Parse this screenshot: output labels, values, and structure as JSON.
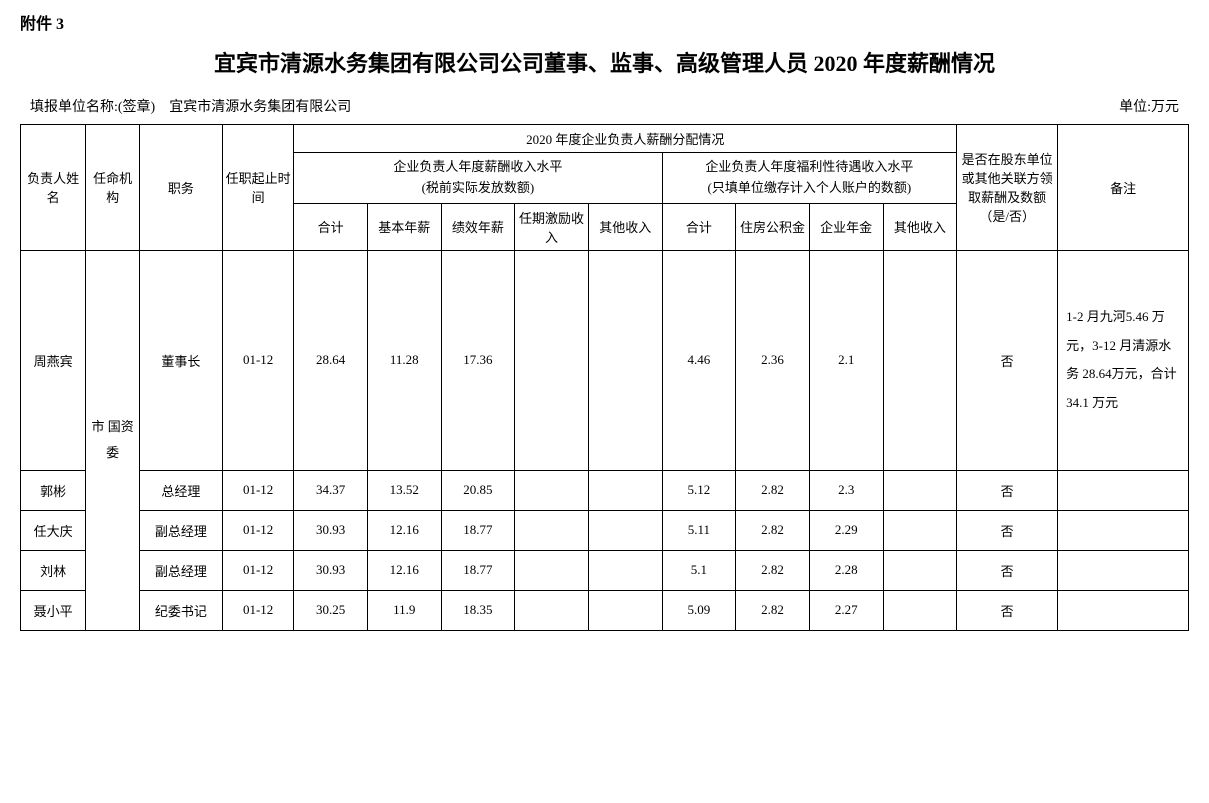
{
  "attachment_label": "附件 3",
  "main_title": "宜宾市清源水务集团有限公司公司董事、监事、高级管理人员 2020 年度薪酬情况",
  "meta": {
    "reporter_label": "填报单位名称:(签章)",
    "reporter_name": "宜宾市清源水务集团有限公司",
    "unit_label": "单位:万元"
  },
  "headers": {
    "name": "负责人姓 名",
    "agency": "任命机构",
    "position": "职务",
    "period": "任职起止时间",
    "year_summary": "2020 年度企业负责人薪酬分配情况",
    "salary_group": "企业负责人年度薪酬收入水平",
    "salary_group_sub": "(税前实际发放数额)",
    "welfare_group": "企业负责人年度福利性待遇收入水平",
    "welfare_group_sub": "(只填单位缴存计入个人账户的数额)",
    "total1": "合计",
    "base_salary": "基本年薪",
    "perf_salary": "绩效年薪",
    "incentive": "任期激励收入",
    "other1": "其他收入",
    "total2": "合计",
    "housing": "住房公积金",
    "annuity": "企业年金",
    "other2": "其他收入",
    "related_party": "是否在股东单位或其他关联方领取薪酬及数额（是/否）",
    "remark": "备注"
  },
  "agency_value": "市 国资 委",
  "rows": [
    {
      "name": "周燕宾",
      "position": "董事长",
      "period": "01-12",
      "total1": "28.64",
      "base": "11.28",
      "perf": "17.36",
      "incentive": "",
      "other1": "",
      "total2": "4.46",
      "housing": "2.36",
      "annuity": "2.1",
      "other2": "",
      "related": "否",
      "remark": "1-2 月九河5.46 万元，3-12 月清源水务 28.64万元，合计34.1 万元"
    },
    {
      "name": "郭彬",
      "position": "总经理",
      "period": "01-12",
      "total1": "34.37",
      "base": "13.52",
      "perf": "20.85",
      "incentive": "",
      "other1": "",
      "total2": "5.12",
      "housing": "2.82",
      "annuity": "2.3",
      "other2": "",
      "related": "否",
      "remark": ""
    },
    {
      "name": "任大庆",
      "position": "副总经理",
      "period": "01-12",
      "total1": "30.93",
      "base": "12.16",
      "perf": "18.77",
      "incentive": "",
      "other1": "",
      "total2": "5.11",
      "housing": "2.82",
      "annuity": "2.29",
      "other2": "",
      "related": "否",
      "remark": ""
    },
    {
      "name": "刘林",
      "position": "副总经理",
      "period": "01-12",
      "total1": "30.93",
      "base": "12.16",
      "perf": "18.77",
      "incentive": "",
      "other1": "",
      "total2": "5.1",
      "housing": "2.82",
      "annuity": "2.28",
      "other2": "",
      "related": "否",
      "remark": ""
    },
    {
      "name": "聂小平",
      "position": "纪委书记",
      "period": "01-12",
      "total1": "30.25",
      "base": "11.9",
      "perf": "18.35",
      "incentive": "",
      "other1": "",
      "total2": "5.09",
      "housing": "2.82",
      "annuity": "2.27",
      "other2": "",
      "related": "否",
      "remark": ""
    }
  ]
}
